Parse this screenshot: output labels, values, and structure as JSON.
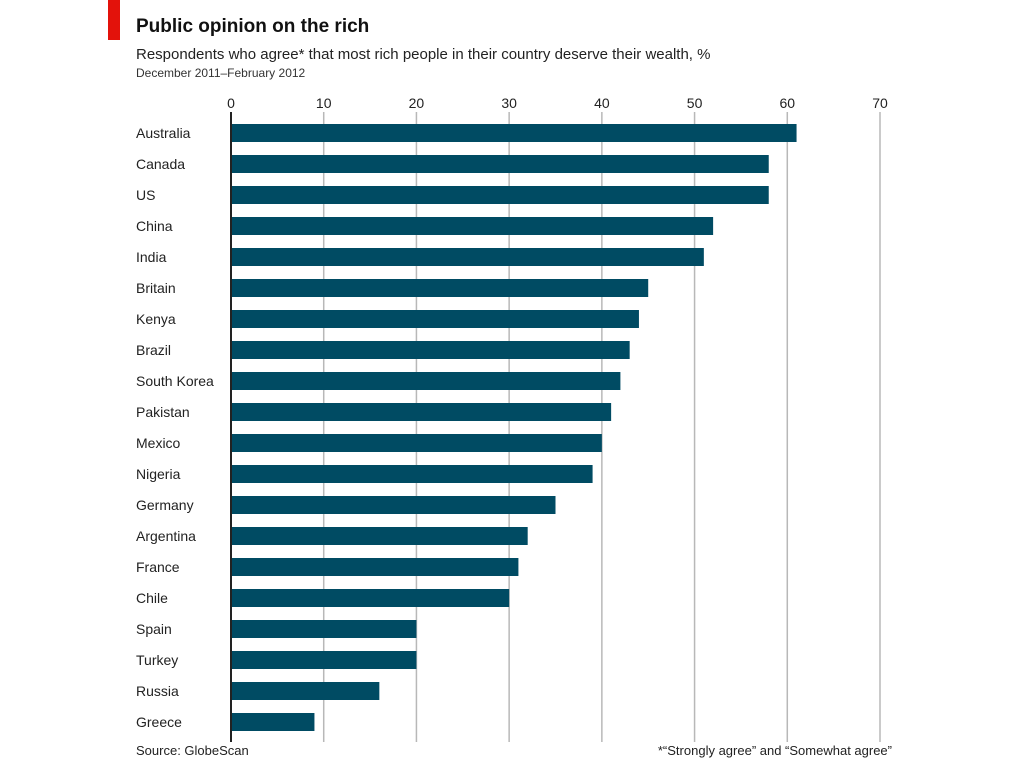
{
  "header": {
    "title": "Public opinion on the rich",
    "subtitle": "Respondents who agree* that most rich people in their country deserve their wealth, %",
    "date_range": "December 2011–February 2012"
  },
  "footer": {
    "source": "Source: GlobeScan",
    "note": "*“Strongly agree” and “Somewhat agree”"
  },
  "colors": {
    "accent": "#e3120b",
    "bar": "#004b63",
    "grid": "#b8b8b8",
    "axis": "#222222"
  },
  "chart_data": {
    "type": "bar",
    "orientation": "horizontal",
    "categories": [
      "Australia",
      "Canada",
      "US",
      "China",
      "India",
      "Britain",
      "Kenya",
      "Brazil",
      "South Korea",
      "Pakistan",
      "Mexico",
      "Nigeria",
      "Germany",
      "Argentina",
      "France",
      "Chile",
      "Spain",
      "Turkey",
      "Russia",
      "Greece"
    ],
    "values": [
      61,
      58,
      58,
      52,
      51,
      45,
      44,
      43,
      42,
      41,
      40,
      39,
      35,
      32,
      31,
      30,
      20,
      20,
      16,
      9
    ],
    "xlim": [
      0,
      70
    ],
    "xticks": [
      "0",
      "10",
      "20",
      "30",
      "40",
      "50",
      "60",
      "70"
    ],
    "tick_position": "top",
    "grid": true
  }
}
